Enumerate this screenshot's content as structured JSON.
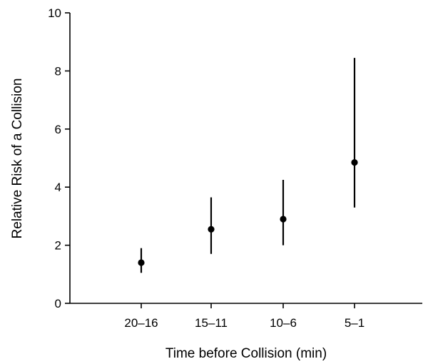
{
  "chart_data": {
    "type": "scatter",
    "title": "",
    "xlabel": "Time before Collision (min)",
    "ylabel": "Relative Risk of a Collision",
    "categories": [
      "20–16",
      "15–11",
      "10–6",
      "5–1"
    ],
    "series": [
      {
        "points": [
          {
            "x": "20–16",
            "y": 1.4,
            "lower": 1.05,
            "upper": 1.9
          },
          {
            "x": "15–11",
            "y": 2.55,
            "lower": 1.7,
            "upper": 3.65
          },
          {
            "x": "10–6",
            "y": 2.9,
            "lower": 2.0,
            "upper": 4.25
          },
          {
            "x": "5–1",
            "y": 4.85,
            "lower": 3.3,
            "upper": 8.45
          }
        ]
      }
    ],
    "ylim": [
      0,
      10
    ],
    "yticks": [
      0,
      2,
      4,
      6,
      8,
      10
    ],
    "grid": false,
    "legend": "none"
  }
}
